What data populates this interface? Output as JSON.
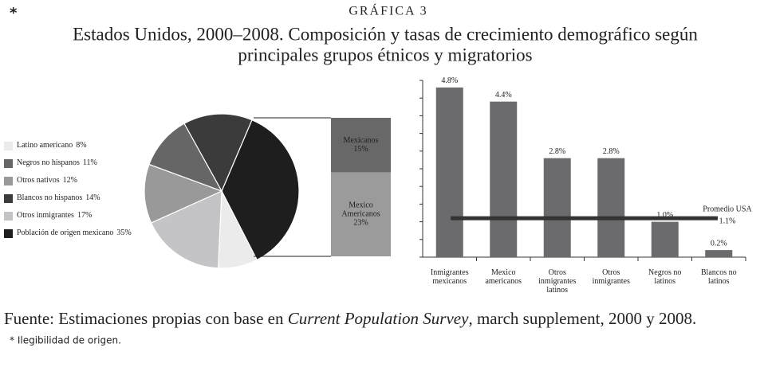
{
  "marker": "*",
  "label": "GRÁFICA 3",
  "title": [
    "Estados Unidos, 2000–2008. Composición y tasas de crecimiento demográfico según",
    "principales grupos étnicos y migratorios"
  ],
  "chart_data": [
    {
      "type": "pie",
      "categories": [
        "Latino americano",
        "Negros no hispanos",
        "Otros nativos",
        "Blancos no hispanos",
        "Otros inmigrantes",
        "Población de origen mexicano"
      ],
      "values": [
        8,
        11,
        12,
        14,
        17,
        35
      ],
      "value_labels": [
        "8%",
        "11%",
        "12%",
        "14%",
        "17%",
        "35%"
      ],
      "colors": [
        "#ebebeb",
        "#666666",
        "#999999",
        "#3b3b3b",
        "#c4c4c6",
        "#1e1e1e"
      ]
    },
    {
      "type": "stacked_bar",
      "categories": [
        [
          "Mexicanos"
        ],
        [
          "Mexico",
          "Americanos"
        ]
      ],
      "values": [
        15,
        23
      ],
      "value_labels": [
        "15%",
        "23%"
      ],
      "colors": [
        "#686868",
        "#9b9b9b"
      ]
    },
    {
      "type": "bar",
      "categories": [
        [
          "Inmigrantes",
          "mexicanos"
        ],
        [
          "Mexico",
          "americanos"
        ],
        [
          "Otros",
          "inmigrantes",
          "latinos"
        ],
        [
          "Otros",
          "inmigrantes"
        ],
        [
          "Negros no",
          "latinos"
        ],
        [
          "Blancos no",
          "latinos"
        ]
      ],
      "values": [
        4.8,
        4.4,
        2.8,
        2.8,
        1.0,
        0.2
      ],
      "value_labels": [
        "4.8%",
        "4.4%",
        "2.8%",
        "2.8%",
        "1.0%",
        "0.2%"
      ],
      "color": "#6b6b6d",
      "ylim": [
        0,
        5
      ],
      "yticks": [
        0,
        0.5,
        1,
        1.5,
        2,
        2.5,
        3,
        3.5,
        4,
        4.5,
        5
      ],
      "reference_line": {
        "label": "Promedio USA",
        "value": 1.1,
        "value_label": "1.1%"
      }
    }
  ],
  "source": [
    "Fuente: Estimaciones propias con base en ",
    "Current Population Survey",
    ", march supplement, 2000 y 2008."
  ],
  "footnote": "* Ilegibilidad de origen."
}
